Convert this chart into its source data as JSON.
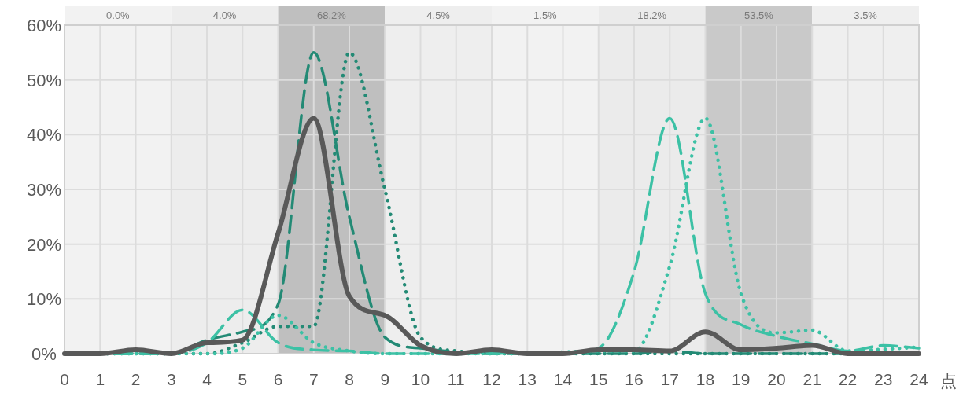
{
  "chart_data": {
    "type": "line",
    "xlabel": "点",
    "x": [
      0,
      1,
      2,
      3,
      4,
      5,
      6,
      7,
      8,
      9,
      10,
      11,
      12,
      13,
      14,
      15,
      16,
      17,
      18,
      19,
      20,
      21,
      22,
      23,
      24
    ],
    "series": [
      {
        "color": "#238a75",
        "line_style": "dashed",
        "values": [
          0,
          0,
          0,
          0,
          2.5,
          4,
          9,
          55,
          25,
          3,
          1,
          0.3,
          0,
          0,
          0,
          0,
          0,
          0.5,
          0,
          0,
          0,
          0,
          0,
          0,
          0
        ]
      },
      {
        "color": "#238a75",
        "line_style": "dotted",
        "values": [
          0,
          0,
          0,
          0,
          0,
          2,
          5,
          5,
          55,
          30,
          3,
          0.5,
          0,
          0,
          0,
          0,
          0,
          0,
          0,
          0,
          0,
          0,
          0,
          0,
          0
        ]
      },
      {
        "color": "#3cc1a5",
        "line_style": "dashed",
        "values": [
          0,
          0,
          0,
          0,
          2,
          8,
          2,
          0.7,
          0.5,
          0,
          0,
          0,
          0,
          0.3,
          0,
          1,
          15,
          43,
          11,
          5.3,
          3.2,
          1.8,
          0.5,
          1.5,
          1
        ]
      },
      {
        "color": "#3cc1a5",
        "line_style": "dotted",
        "values": [
          0,
          0,
          0,
          0,
          0,
          1,
          7,
          2,
          0.5,
          0,
          0,
          0,
          0,
          0,
          0.3,
          0.5,
          0.5,
          16,
          43,
          11,
          3.8,
          4.3,
          0.5,
          0.8,
          1.2
        ]
      },
      {
        "color": "#595959",
        "line_style": "solid",
        "values": [
          0,
          0,
          0.7,
          0,
          2,
          2.5,
          22,
          43,
          10.5,
          7,
          1.5,
          0,
          0.7,
          0,
          0,
          0.7,
          0.7,
          0.5,
          4,
          0.7,
          1,
          1.5,
          0,
          0,
          0
        ]
      }
    ],
    "xlim": [
      0,
      24
    ],
    "ylim": [
      0,
      60
    ],
    "xticks": [
      0,
      1,
      2,
      3,
      4,
      5,
      6,
      7,
      8,
      9,
      10,
      11,
      12,
      13,
      14,
      15,
      16,
      17,
      18,
      19,
      20,
      21,
      22,
      23,
      24
    ],
    "yticks": [
      {
        "value": 0,
        "label": "0%"
      },
      {
        "value": 10,
        "label": "10%"
      },
      {
        "value": 20,
        "label": "20%"
      },
      {
        "value": 30,
        "label": "30%"
      },
      {
        "value": 40,
        "label": "40%"
      },
      {
        "value": 50,
        "label": "50%"
      },
      {
        "value": 60,
        "label": "60%"
      }
    ],
    "grid": true,
    "bands": [
      {
        "axis": "x",
        "from": 0,
        "to": 3,
        "label": "0.0%",
        "color": "#f2f2f2"
      },
      {
        "axis": "x",
        "from": 3,
        "to": 6,
        "label": "4.0%",
        "color": "#ededed"
      },
      {
        "axis": "x",
        "from": 6,
        "to": 9,
        "label": "68.2%",
        "color": "#bfbfbf"
      },
      {
        "axis": "x",
        "from": 9,
        "to": 12,
        "label": "4.5%",
        "color": "#eeeeee"
      },
      {
        "axis": "x",
        "from": 12,
        "to": 15,
        "label": "1.5%",
        "color": "#f2f2f2"
      },
      {
        "axis": "x",
        "from": 15,
        "to": 18,
        "label": "18.2%",
        "color": "#ebebeb"
      },
      {
        "axis": "x",
        "from": 18,
        "to": 21,
        "label": "53.5%",
        "color": "#c9c9c9"
      },
      {
        "axis": "x",
        "from": 21,
        "to": 24,
        "label": "3.5%",
        "color": "#efefef"
      }
    ]
  }
}
